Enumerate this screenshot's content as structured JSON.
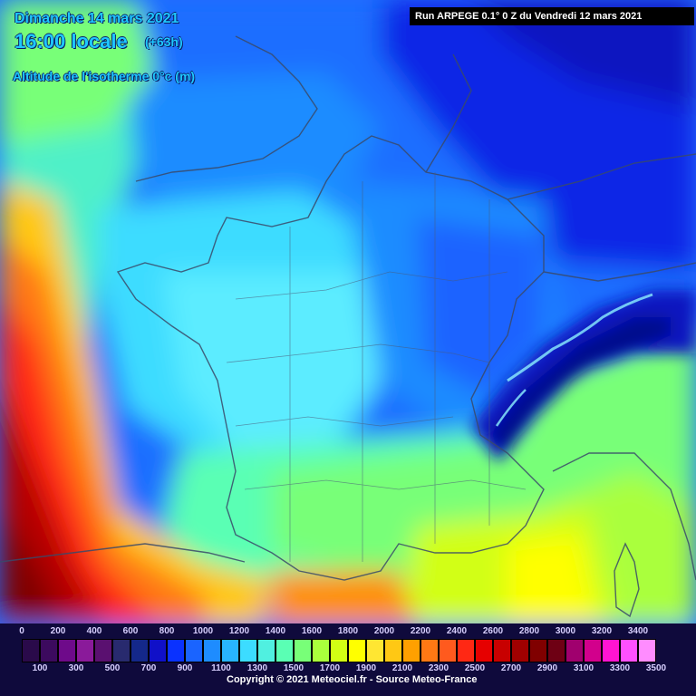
{
  "header": {
    "date": "Dimanche 14 mars 2021",
    "local_time": "16:00 locale",
    "offset": "(+63h)",
    "layer": "Altitude de l'isotherme 0°c (m)",
    "run": "Run ARPEGE 0.1° 0 Z du Vendredi 12 mars 2021"
  },
  "legend": {
    "upper_labels": [
      "0",
      "200",
      "400",
      "600",
      "800",
      "1000",
      "1200",
      "1400",
      "1600",
      "1800",
      "2000",
      "2200",
      "2400",
      "2600",
      "2800",
      "3000",
      "3200",
      "3400"
    ],
    "lower_labels": [
      "100",
      "300",
      "500",
      "700",
      "900",
      "1100",
      "1300",
      "1500",
      "1700",
      "1900",
      "2100",
      "2300",
      "2500",
      "2700",
      "2900",
      "3100",
      "3300",
      "3500"
    ],
    "colors": [
      "#2a0a4a",
      "#3c0a5e",
      "#6e0a8a",
      "#8a1a9a",
      "#5a1070",
      "#282a6e",
      "#14288a",
      "#1010c8",
      "#0a32ff",
      "#1a64ff",
      "#1e8cff",
      "#28b4ff",
      "#3cdcff",
      "#50f0e0",
      "#5affb4",
      "#78ff78",
      "#aaff3c",
      "#d2ff14",
      "#ffff00",
      "#ffe632",
      "#ffc814",
      "#ffa000",
      "#ff7814",
      "#ff5a1e",
      "#ff2814",
      "#e60000",
      "#c80000",
      "#a00000",
      "#800000",
      "#6e0014",
      "#a0006e",
      "#d2008c",
      "#ff14d2",
      "#ff50ff",
      "#ff8cff"
    ]
  },
  "copyright": "Copyright © 2021 Meteociel.fr - Source Meteo-France"
}
